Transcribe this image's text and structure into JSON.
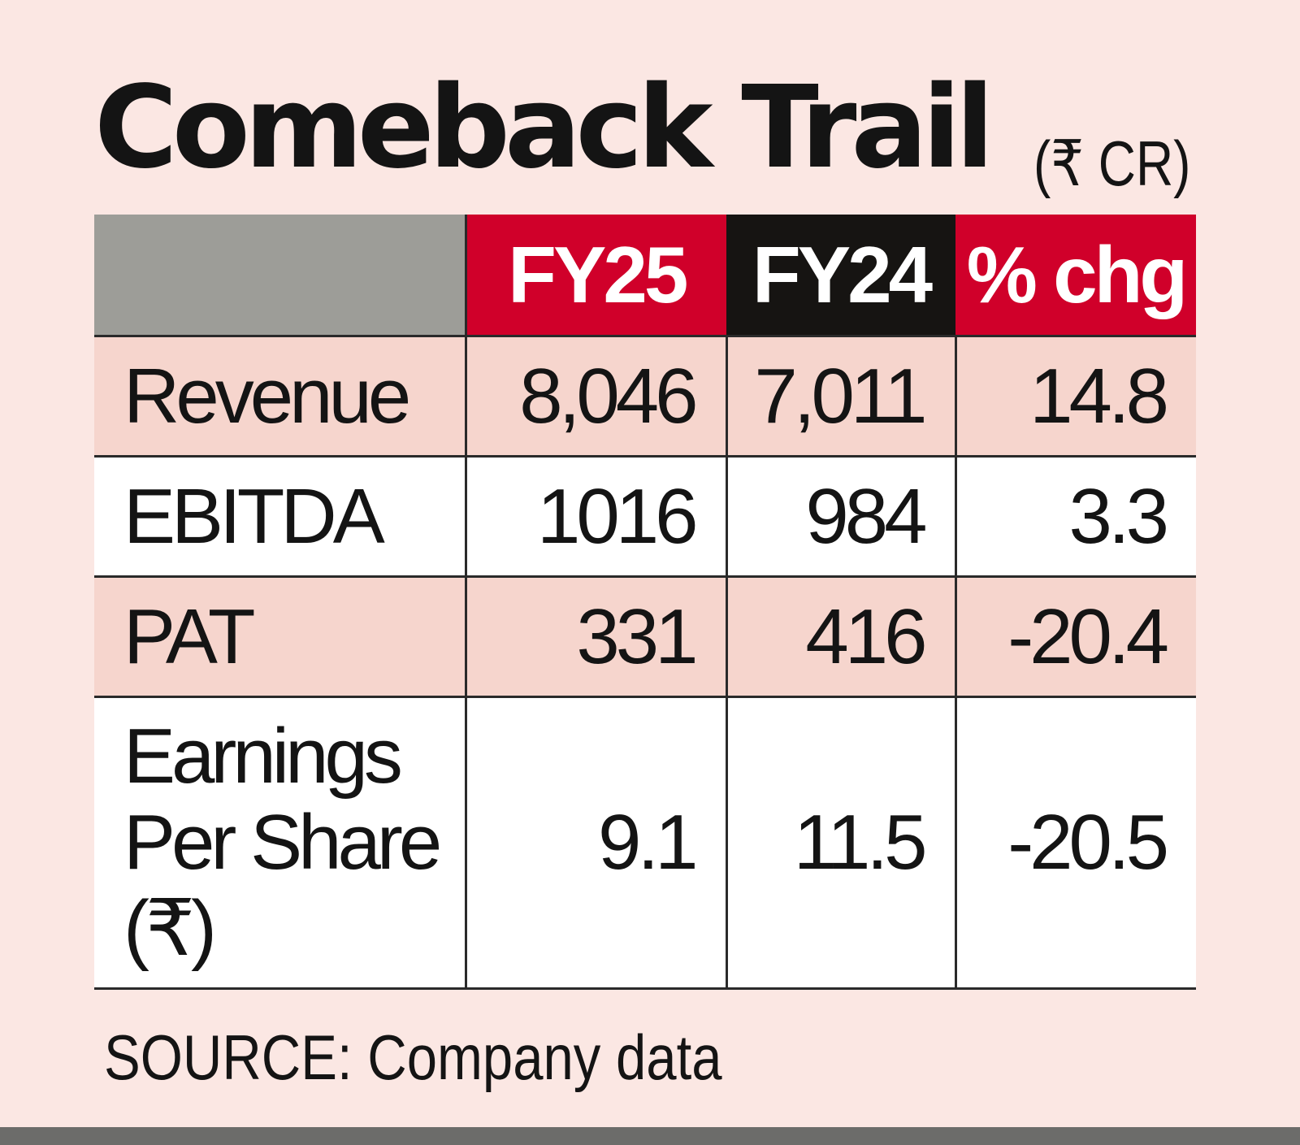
{
  "title": "Comeback Trail",
  "unit": "(₹ CR)",
  "source": "SOURCE: Company data",
  "colors": {
    "background": "#fbe7e3",
    "header_red": "#d0002a",
    "header_black": "#161412",
    "header_grey": "#9d9d98",
    "row_pink": "#f6d5cd",
    "row_white": "#ffffff"
  },
  "chart_data": {
    "type": "table",
    "title": "Comeback Trail",
    "unit": "(₹ CR)",
    "columns": [
      "",
      "FY25",
      "FY24",
      "% chg"
    ],
    "rows": [
      {
        "label": "Revenue",
        "fy25": "8,046",
        "fy24": "7,011",
        "chg": "14.8"
      },
      {
        "label": "EBITDA",
        "fy25": "1016",
        "fy24": "984",
        "chg": "3.3"
      },
      {
        "label": "PAT",
        "fy25": "331",
        "fy24": "416",
        "chg": "-20.4"
      },
      {
        "label": "Earnings Per Share (₹)",
        "fy25": "9.1",
        "fy24": "11.5",
        "chg": "-20.5"
      }
    ],
    "source": "SOURCE: Company data"
  }
}
